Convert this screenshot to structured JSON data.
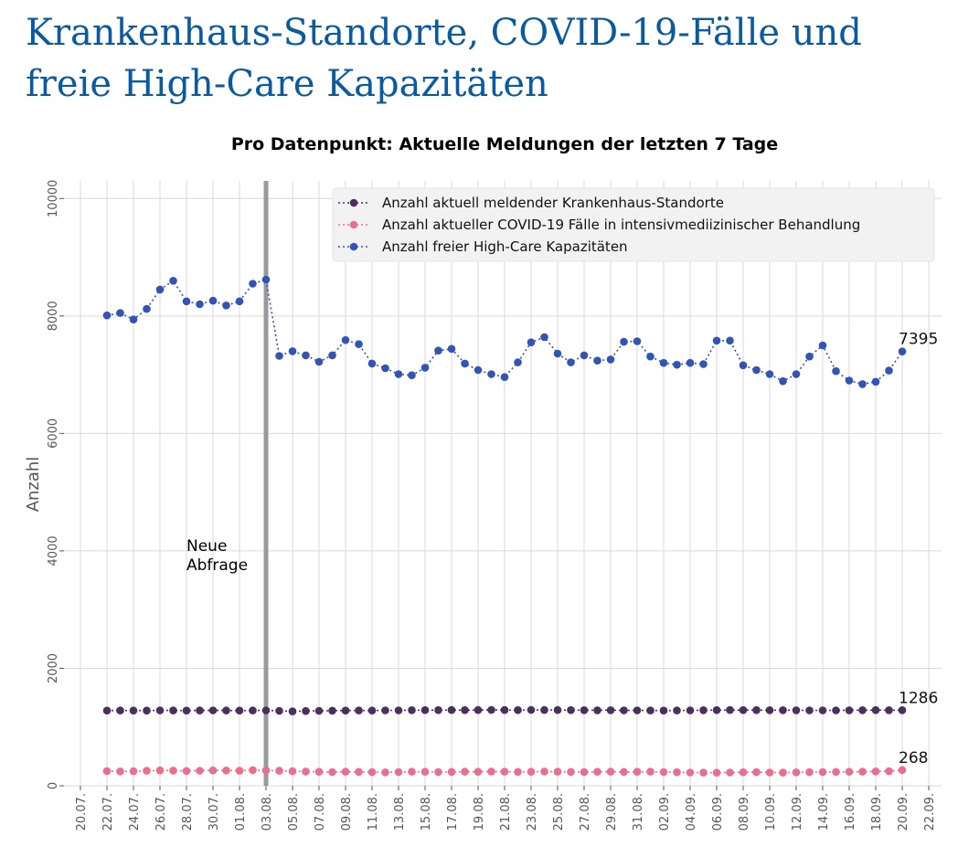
{
  "page": {
    "title_line1": "Krankenhaus-Standorte, COVID-19-Fälle und",
    "title_line2": "freie High-Care Kapazitäten"
  },
  "chart_data": {
    "type": "line",
    "title": "Pro Datenpunkt: Aktuelle Meldungen der letzten 7 Tage",
    "xlabel": "",
    "ylabel": "Anzahl",
    "ylim": [
      0,
      10300
    ],
    "yticks": [
      0,
      2000,
      4000,
      6000,
      8000,
      10000
    ],
    "grid": true,
    "legend_position": "top-right",
    "x_tick_labels": [
      "20.07.",
      "22.07.",
      "24.07.",
      "26.07.",
      "28.07.",
      "30.07.",
      "01.08.",
      "03.08.",
      "05.08.",
      "07.08.",
      "09.08.",
      "11.08.",
      "13.08.",
      "15.08.",
      "17.08.",
      "19.08.",
      "21.08.",
      "23.08.",
      "25.08.",
      "27.08.",
      "29.08.",
      "31.08.",
      "02.09.",
      "04.09.",
      "06.09.",
      "08.09.",
      "10.09.",
      "12.09.",
      "14.09.",
      "16.09.",
      "18.09.",
      "20.09.",
      "22.09."
    ],
    "x": [
      "22.07.",
      "23.07.",
      "24.07.",
      "25.07.",
      "26.07.",
      "27.07.",
      "28.07.",
      "29.07.",
      "30.07.",
      "31.07.",
      "01.08.",
      "02.08.",
      "03.08.",
      "04.08.",
      "05.08.",
      "06.08.",
      "07.08.",
      "08.08.",
      "09.08.",
      "10.08.",
      "11.08.",
      "12.08.",
      "13.08.",
      "14.08.",
      "15.08.",
      "16.08.",
      "17.08.",
      "18.08.",
      "19.08.",
      "20.08.",
      "21.08.",
      "22.08.",
      "23.08.",
      "24.08.",
      "25.08.",
      "26.08.",
      "27.08.",
      "28.08.",
      "29.08.",
      "30.08.",
      "31.08.",
      "01.09.",
      "02.09.",
      "03.09.",
      "04.09.",
      "05.09.",
      "06.09.",
      "07.09.",
      "08.09.",
      "09.09.",
      "10.09.",
      "11.09.",
      "12.09.",
      "13.09.",
      "14.09.",
      "15.09.",
      "16.09.",
      "17.09.",
      "18.09.",
      "19.09.",
      "20.09."
    ],
    "series": [
      {
        "name": "Anzahl aktuell meldender Krankenhaus-Standorte",
        "color": "#4b2f5c",
        "last_label": "1286",
        "values": [
          1280,
          1282,
          1280,
          1281,
          1283,
          1282,
          1281,
          1282,
          1283,
          1282,
          1281,
          1282,
          1284,
          1276,
          1266,
          1272,
          1276,
          1279,
          1281,
          1282,
          1280,
          1283,
          1284,
          1286,
          1288,
          1289,
          1290,
          1289,
          1290,
          1291,
          1290,
          1289,
          1291,
          1290,
          1290,
          1289,
          1287,
          1285,
          1286,
          1284,
          1283,
          1282,
          1281,
          1282,
          1284,
          1286,
          1288,
          1290,
          1289,
          1288,
          1287,
          1286,
          1285,
          1284,
          1283,
          1284,
          1285,
          1286,
          1288,
          1287,
          1286
        ]
      },
      {
        "name": "Anzahl aktueller COVID-19 Fälle in intensivmediizinischer Behandlung",
        "color": "#e8708e",
        "last_label": "268",
        "values": [
          250,
          245,
          248,
          255,
          262,
          258,
          252,
          256,
          262,
          260,
          255,
          266,
          262,
          255,
          248,
          242,
          238,
          234,
          240,
          236,
          232,
          228,
          234,
          240,
          238,
          234,
          236,
          240,
          238,
          242,
          240,
          236,
          238,
          242,
          240,
          236,
          234,
          238,
          240,
          236,
          238,
          240,
          234,
          230,
          226,
          224,
          222,
          226,
          230,
          232,
          226,
          224,
          228,
          232,
          234,
          236,
          238,
          240,
          244,
          248,
          268
        ]
      },
      {
        "name": "Anzahl freier High-Care Kapazitäten",
        "color": "#3454b4",
        "last_label": "7395",
        "values": [
          8010,
          8050,
          7940,
          8120,
          8450,
          8600,
          8250,
          8200,
          8260,
          8180,
          8250,
          8550,
          8620,
          7320,
          7400,
          7330,
          7220,
          7330,
          7590,
          7520,
          7190,
          7110,
          7010,
          6990,
          7120,
          7410,
          7440,
          7190,
          7080,
          7010,
          6960,
          7210,
          7550,
          7640,
          7360,
          7210,
          7330,
          7240,
          7260,
          7560,
          7570,
          7310,
          7200,
          7170,
          7200,
          7180,
          7580,
          7580,
          7160,
          7080,
          7010,
          6890,
          7010,
          7310,
          7500,
          7060,
          6900,
          6840,
          6880,
          7070,
          7395
        ]
      }
    ],
    "annotation": {
      "text_line1": "Neue",
      "text_line2": "Abfrage",
      "at_x": "03.08."
    }
  }
}
